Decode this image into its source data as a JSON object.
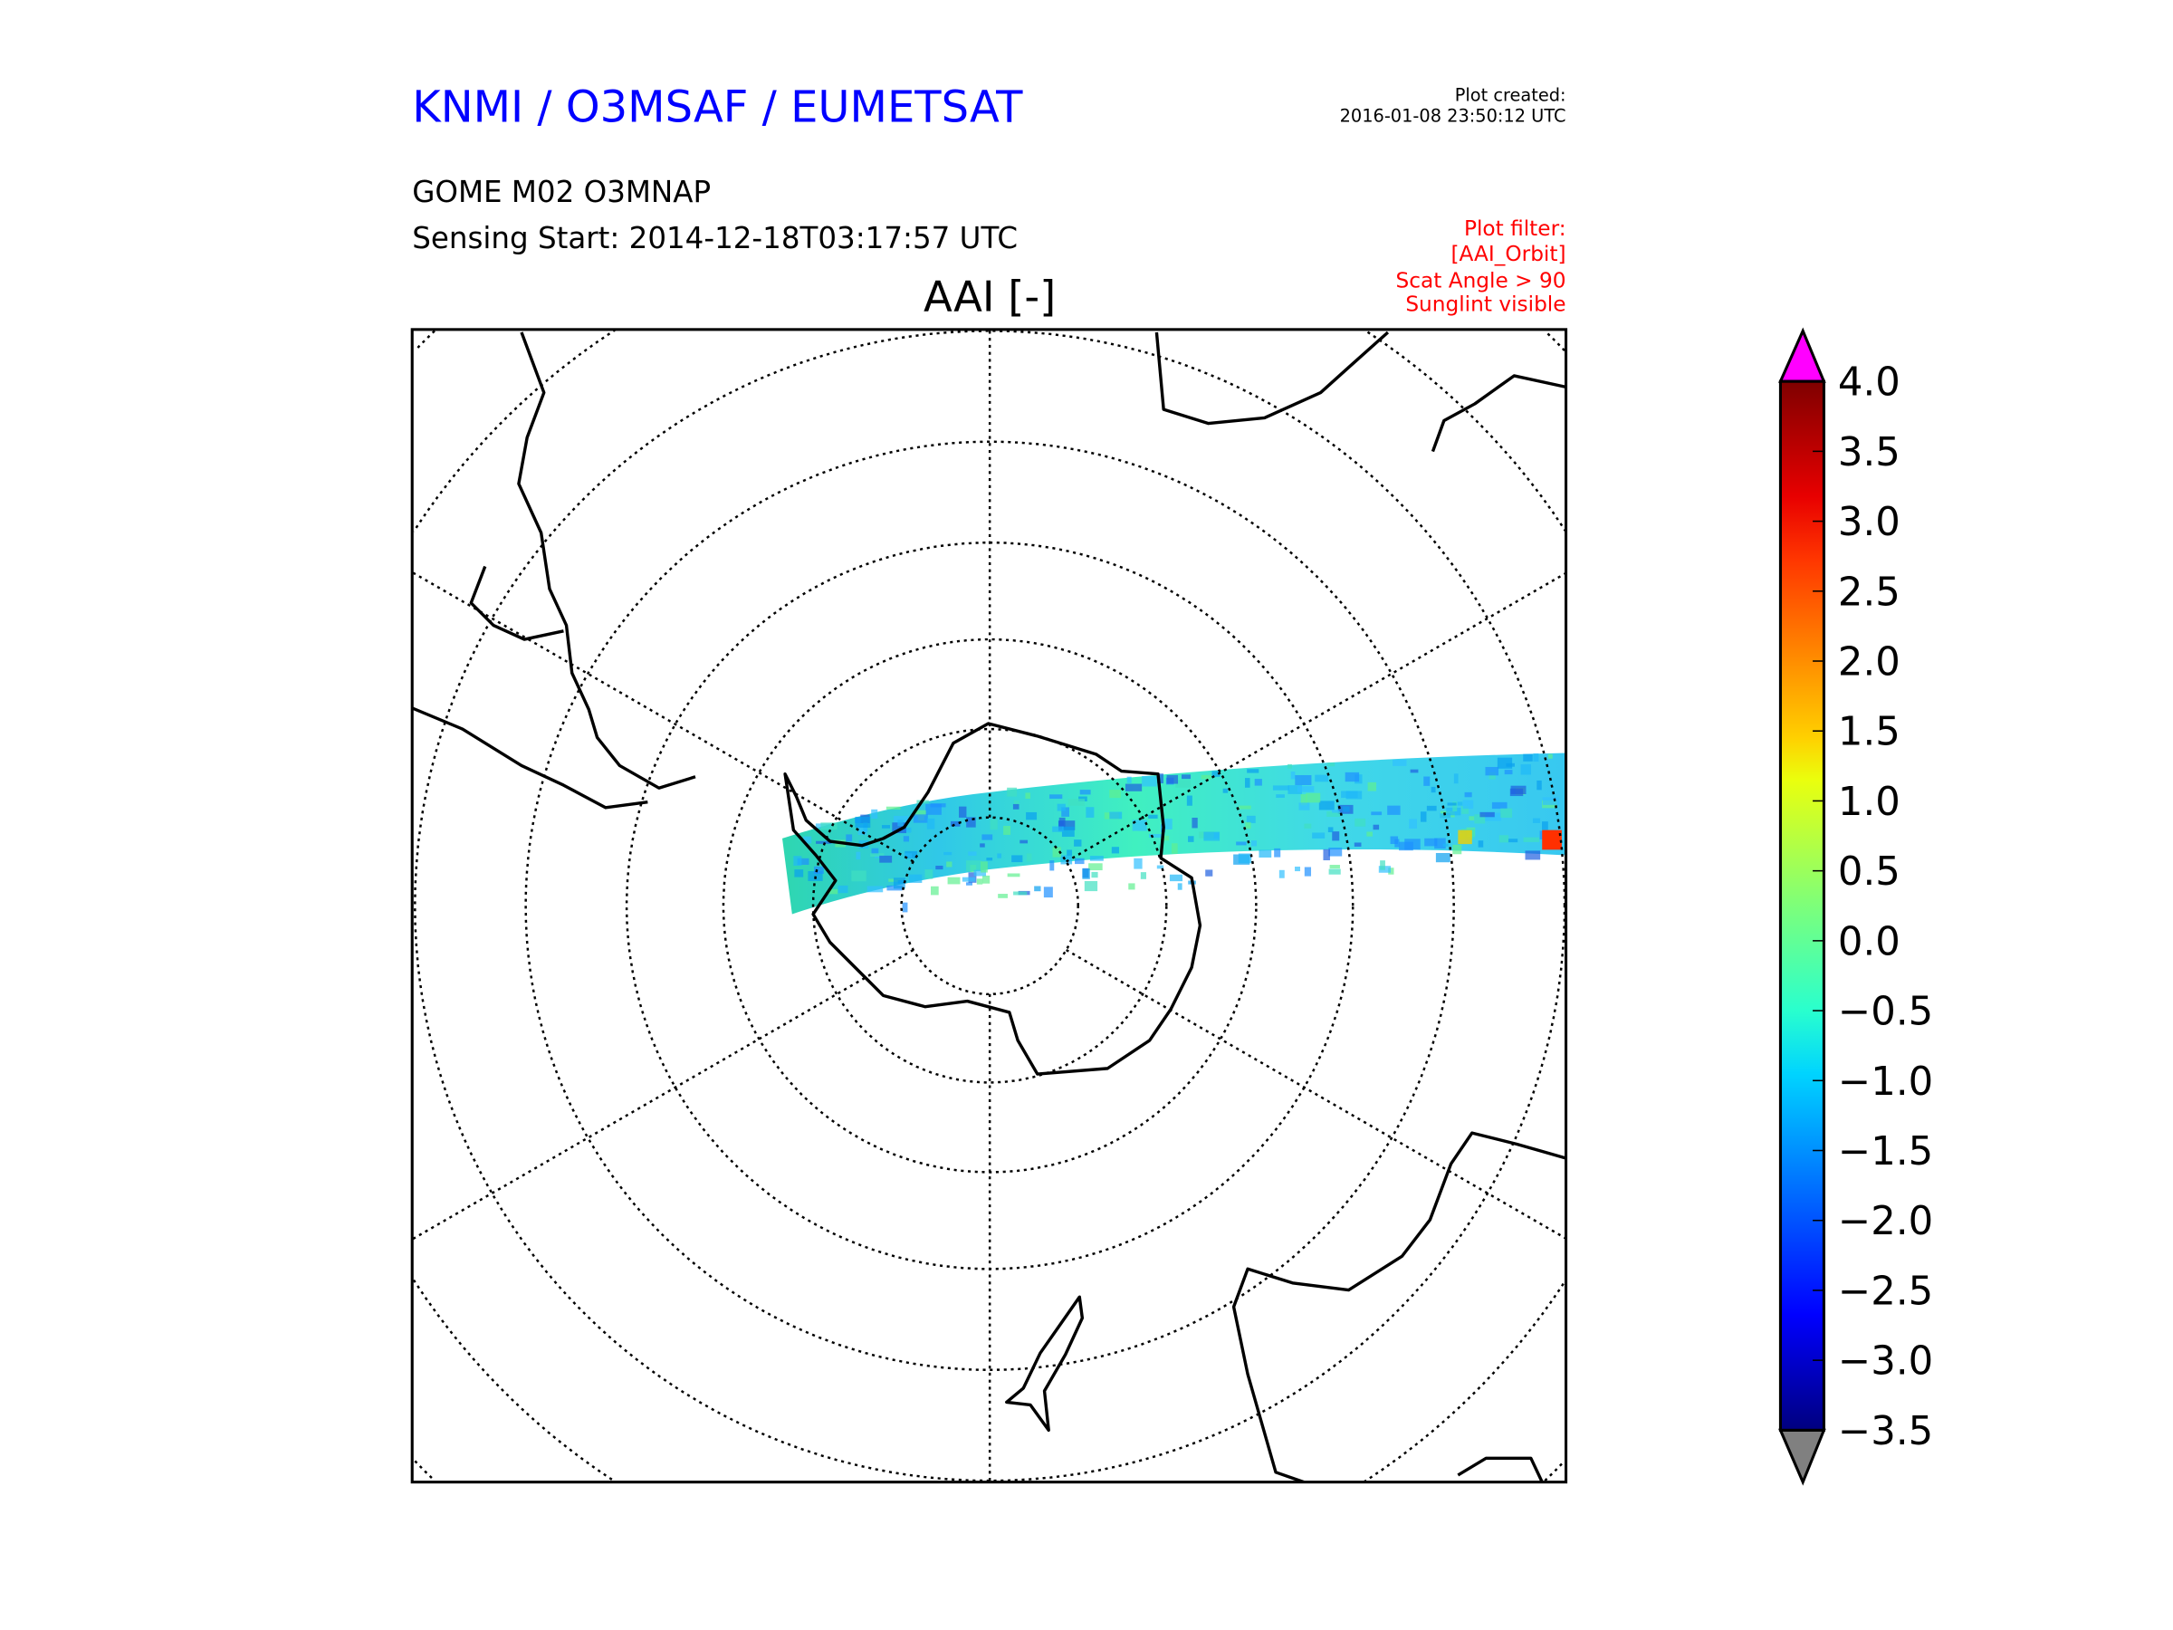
{
  "header": {
    "org_title": "KNMI / O3MSAF / EUMETSAT",
    "plot_created_label": "Plot created:",
    "plot_created_value": "2016-01-08 23:50:12 UTC",
    "product": "GOME M02 O3MNAP",
    "sensing_start": "Sensing Start: 2014-12-18T03:17:57 UTC",
    "filter_lines": [
      "Plot filter:",
      "[AAI_Orbit]",
      "Scat Angle > 90",
      "Sunglint visible"
    ]
  },
  "map": {
    "title": "AAI [-]",
    "projection": "south-polar stereographic"
  },
  "colors": {
    "title_blue": "#0000ff",
    "filter_red": "#ff0000",
    "over_color": "#ff00ff",
    "under_color": "#808080"
  },
  "chart_data": {
    "type": "heatmap",
    "title": "AAI [-]",
    "colorbar": {
      "min": -3.5,
      "max": 4.0,
      "colormap": "jet",
      "extend": "both",
      "ticks": [
        "4.0",
        "3.5",
        "3.0",
        "2.5",
        "2.0",
        "1.5",
        "1.0",
        "0.5",
        "0.0",
        "−0.5",
        "−1.0",
        "−1.5",
        "−2.0",
        "−2.5",
        "−3.0",
        "−3.5"
      ]
    },
    "swath_typical_range": [
      -2.0,
      0.5
    ]
  }
}
